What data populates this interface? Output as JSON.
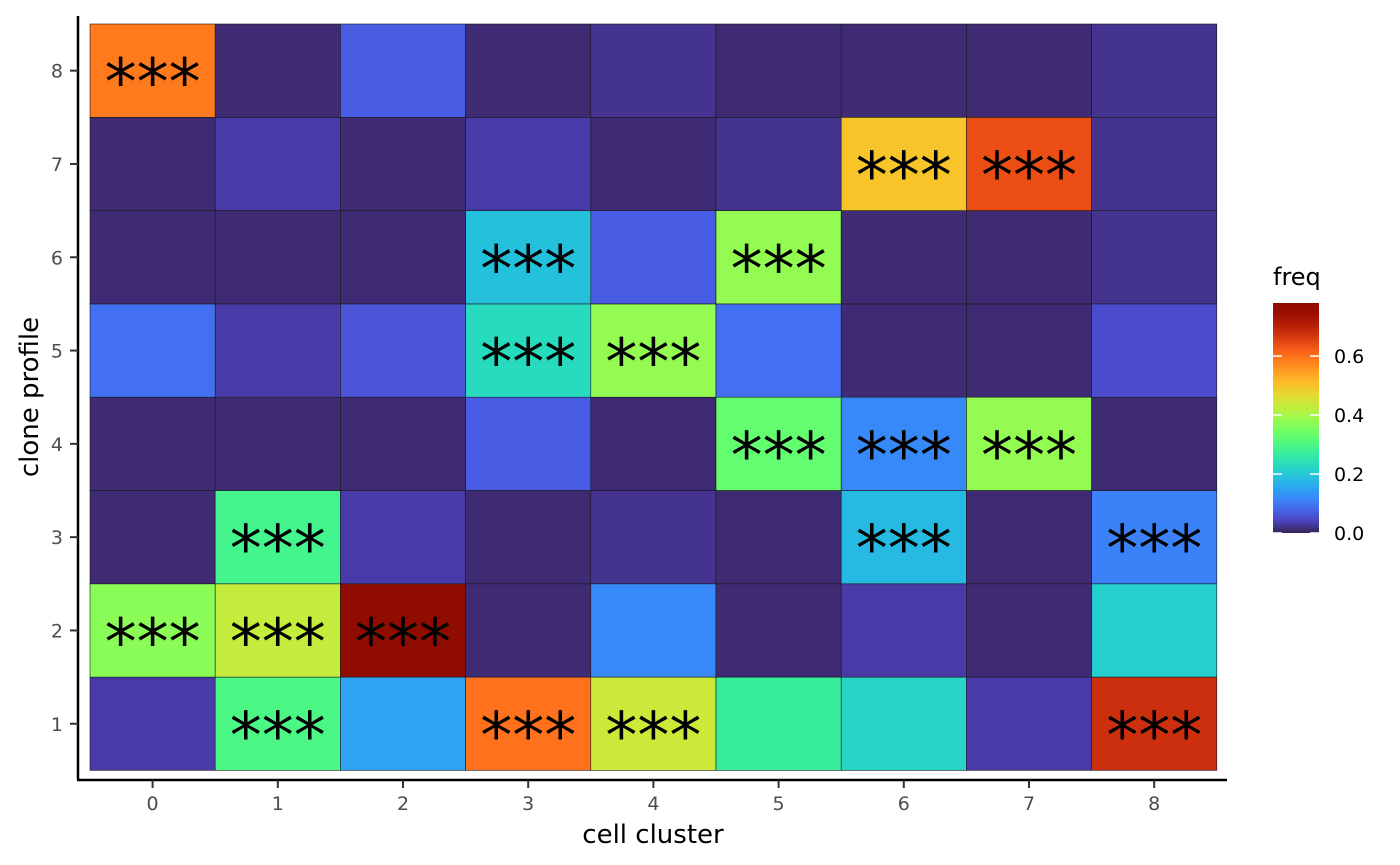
{
  "chart_data": {
    "type": "heatmap",
    "xlabel": "cell cluster",
    "ylabel": "clone profile",
    "x_categories": [
      "0",
      "1",
      "2",
      "3",
      "4",
      "5",
      "6",
      "7",
      "8"
    ],
    "y_categories": [
      "1",
      "2",
      "3",
      "4",
      "5",
      "6",
      "7",
      "8"
    ],
    "values": [
      [
        0.03,
        0.3,
        0.15,
        0.6,
        0.44,
        0.27,
        0.22,
        0.03,
        0.68
      ],
      [
        0.37,
        0.43,
        0.78,
        0.01,
        0.12,
        0.01,
        0.03,
        0.01,
        0.21
      ],
      [
        0.01,
        0.29,
        0.03,
        0.01,
        0.02,
        0.01,
        0.18,
        0.01,
        0.11
      ],
      [
        0.01,
        0.01,
        0.01,
        0.07,
        0.01,
        0.33,
        0.12,
        0.38,
        0.01
      ],
      [
        0.09,
        0.03,
        0.06,
        0.23,
        0.38,
        0.09,
        0.01,
        0.01,
        0.05
      ],
      [
        0.01,
        0.01,
        0.01,
        0.19,
        0.07,
        0.38,
        0.01,
        0.01,
        0.02
      ],
      [
        0.01,
        0.03,
        0.01,
        0.03,
        0.01,
        0.02,
        0.5,
        0.64,
        0.02
      ],
      [
        0.59,
        0.01,
        0.07,
        0.01,
        0.02,
        0.01,
        0.01,
        0.01,
        0.02
      ]
    ],
    "significance_label": "***",
    "significant": [
      [
        false,
        true,
        false,
        true,
        true,
        false,
        false,
        false,
        true
      ],
      [
        true,
        true,
        true,
        false,
        false,
        false,
        false,
        false,
        false
      ],
      [
        false,
        true,
        false,
        false,
        false,
        false,
        true,
        false,
        true
      ],
      [
        false,
        false,
        false,
        false,
        false,
        true,
        true,
        true,
        false
      ],
      [
        false,
        false,
        false,
        true,
        true,
        false,
        false,
        false,
        false
      ],
      [
        false,
        false,
        false,
        true,
        false,
        true,
        false,
        false,
        false
      ],
      [
        false,
        false,
        false,
        false,
        false,
        false,
        true,
        true,
        false
      ],
      [
        true,
        false,
        false,
        false,
        false,
        false,
        false,
        false,
        false
      ]
    ],
    "legend": {
      "title": "freq",
      "range": [
        0,
        0.78
      ],
      "ticks": [
        0.0,
        0.2,
        0.4,
        0.6
      ],
      "tick_labels": [
        "0.0",
        "0.2",
        "0.4",
        "0.6"
      ],
      "colormap": "turbo",
      "placement": "right"
    },
    "grid": false
  }
}
